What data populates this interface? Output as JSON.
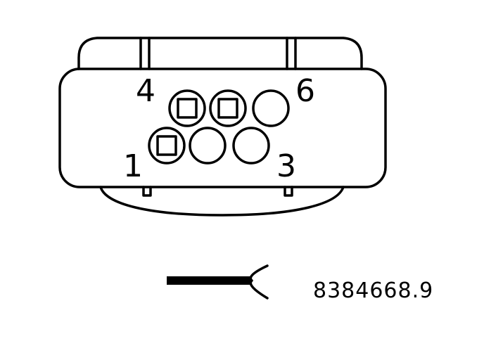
{
  "connector": {
    "pin_count": 6,
    "pins": [
      {
        "number": 1,
        "row": "bottom",
        "terminal": "square"
      },
      {
        "number": 2,
        "row": "bottom",
        "terminal": "empty"
      },
      {
        "number": 3,
        "row": "bottom",
        "terminal": "empty"
      },
      {
        "number": 4,
        "row": "top",
        "terminal": "square"
      },
      {
        "number": 5,
        "row": "top",
        "terminal": "square"
      },
      {
        "number": 6,
        "row": "top",
        "terminal": "empty"
      }
    ],
    "labels": {
      "pin_4": "4",
      "pin_6": "6",
      "pin_1": "1",
      "pin_3": "3"
    }
  },
  "part_number": "8384668.9",
  "colors": {
    "line": "#000000",
    "background": "#ffffff"
  }
}
